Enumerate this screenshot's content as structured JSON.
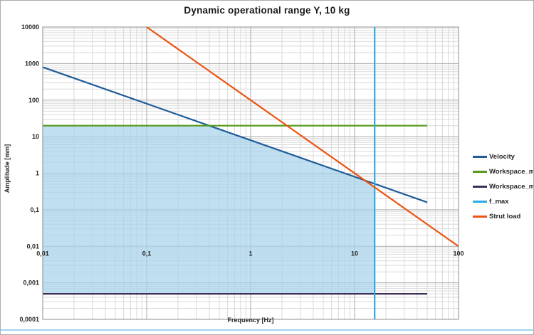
{
  "chart_data": {
    "type": "line",
    "title": "Dynamic operational range Y, 10 kg",
    "xlabel": "Frequency [Hz]",
    "ylabel": "Amplitude [mm]",
    "xscale": "log",
    "yscale": "log",
    "xlim": [
      0.01,
      100
    ],
    "ylim": [
      0.0001,
      10000
    ],
    "grid": "major and minor log gridlines, both axes",
    "legend_position": "right",
    "x_ticks": {
      "values": [
        0.01,
        0.1,
        1,
        10,
        100
      ],
      "labels": [
        "0,01",
        "0,1",
        "1",
        "10",
        "100"
      ]
    },
    "y_ticks": {
      "values": [
        10000,
        1000,
        100,
        10,
        1,
        0.1,
        0.01,
        0.001,
        0.0001
      ],
      "labels": [
        "10000",
        "1000",
        "100",
        "10",
        "1",
        "0,1",
        "0,01",
        "0,001",
        "0,0001"
      ]
    },
    "series": [
      {
        "name": "Velocity",
        "color": "#1f5c99",
        "width": 2.2,
        "points": [
          [
            0.01,
            800
          ],
          [
            50,
            0.16
          ]
        ],
        "note": "log-log slope -1, amplitude ~ 8/f"
      },
      {
        "name": "Workspace_max",
        "color": "#569a1b",
        "width": 2.2,
        "points": [
          [
            0.01,
            20
          ],
          [
            50,
            20
          ]
        ]
      },
      {
        "name": "Workspace_min",
        "color": "#3d2f56",
        "width": 2.2,
        "points": [
          [
            0.01,
            0.0005
          ],
          [
            50,
            0.0005
          ]
        ]
      },
      {
        "name": "f_max",
        "color": "#29abe2",
        "width": 2.2,
        "points": [
          [
            15.6,
            0.0001
          ],
          [
            15.6,
            10000
          ]
        ],
        "note": "vertical limit line at 15.6 Hz"
      },
      {
        "name": "Strut load",
        "color": "#ec5310",
        "width": 2.2,
        "points": [
          [
            0.1,
            10000
          ],
          [
            100,
            0.01
          ]
        ],
        "note": "log-log slope -2, amplitude ~ 100/f^2"
      }
    ],
    "shaded_region": {
      "color": "#a8d4ec",
      "opacity": 0.72,
      "bottom": 0.0005,
      "f_range": [
        0.01,
        15.6
      ],
      "top_bound": "min(Workspace_max, Velocity, Strut load)",
      "description": "light blue operational range: 0.01 Hz to f_max, from Workspace_min up to min(20 mm, velocity limit, strut load limit)"
    }
  }
}
